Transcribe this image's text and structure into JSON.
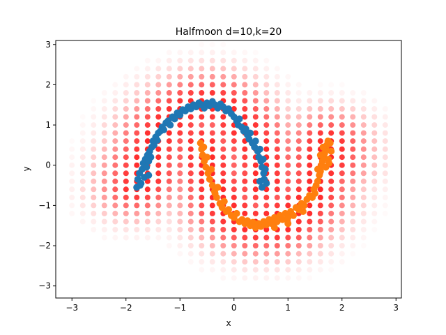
{
  "chart_data": {
    "type": "scatter",
    "title": "Halfmoon d=10,k=20",
    "xlabel": "x",
    "ylabel": "y",
    "xlim": [
      -3.3,
      3.1
    ],
    "ylim": [
      -3.3,
      3.1
    ],
    "xticks": [
      -3,
      -2,
      -1,
      0,
      1,
      2,
      3
    ],
    "yticks": [
      -3,
      -2,
      -1,
      0,
      1,
      2,
      3
    ],
    "grid": false,
    "legend": "none",
    "colors": {
      "grid_points": "#ff0000",
      "upper_moon": "#1f77b4",
      "lower_moon": "#ff7f0e"
    },
    "grid_layer": {
      "description_of_axes": "regular grid of candidate points, opacity encodes density",
      "x_range": [
        -3,
        2.8
      ],
      "y_range": [
        -3.2,
        3.0
      ],
      "step": 0.2
    },
    "series": [
      {
        "color": "#1f77b4",
        "points": [
          [
            -1.8,
            -0.55
          ],
          [
            -1.78,
            -0.35
          ],
          [
            -1.75,
            -0.2
          ],
          [
            -1.72,
            -0.45
          ],
          [
            -1.7,
            -0.1
          ],
          [
            -1.68,
            0.05
          ],
          [
            -1.66,
            -0.3
          ],
          [
            -1.64,
            0.15
          ],
          [
            -1.62,
            -0.05
          ],
          [
            -1.6,
            0.25
          ],
          [
            -1.58,
            0.1
          ],
          [
            -1.56,
            0.35
          ],
          [
            -1.54,
            0.2
          ],
          [
            -1.52,
            0.45
          ],
          [
            -1.5,
            0.6
          ],
          [
            -1.48,
            0.5
          ],
          [
            -1.45,
            0.7
          ],
          [
            -1.42,
            0.62
          ],
          [
            -1.4,
            0.8
          ],
          [
            -1.36,
            0.85
          ],
          [
            -1.33,
            0.95
          ],
          [
            -1.3,
            0.88
          ],
          [
            -1.26,
            1.05
          ],
          [
            -1.22,
            1.1
          ],
          [
            -1.18,
            1.0
          ],
          [
            -1.14,
            1.2
          ],
          [
            -1.1,
            1.15
          ],
          [
            -1.05,
            1.3
          ],
          [
            -1.0,
            1.25
          ],
          [
            -0.95,
            1.38
          ],
          [
            -0.9,
            1.35
          ],
          [
            -0.85,
            1.45
          ],
          [
            -0.8,
            1.4
          ],
          [
            -0.75,
            1.5
          ],
          [
            -0.7,
            1.45
          ],
          [
            -0.65,
            1.55
          ],
          [
            -0.6,
            1.5
          ],
          [
            -0.55,
            1.42
          ],
          [
            -0.5,
            1.55
          ],
          [
            -0.45,
            1.48
          ],
          [
            -0.4,
            1.58
          ],
          [
            -0.35,
            1.5
          ],
          [
            -0.3,
            1.42
          ],
          [
            -0.25,
            1.52
          ],
          [
            -0.2,
            1.45
          ],
          [
            -0.15,
            1.35
          ],
          [
            -0.1,
            1.4
          ],
          [
            -0.05,
            1.28
          ],
          [
            0.0,
            1.2
          ],
          [
            0.05,
            1.1
          ],
          [
            0.08,
            1.0
          ],
          [
            0.1,
            1.15
          ],
          [
            0.14,
            0.95
          ],
          [
            0.18,
            0.85
          ],
          [
            0.22,
            0.9
          ],
          [
            0.25,
            0.75
          ],
          [
            0.28,
            0.65
          ],
          [
            0.3,
            0.8
          ],
          [
            0.34,
            0.55
          ],
          [
            0.38,
            0.45
          ],
          [
            0.4,
            0.6
          ],
          [
            0.44,
            0.35
          ],
          [
            0.46,
            0.2
          ],
          [
            0.48,
            0.4
          ],
          [
            0.5,
            0.1
          ],
          [
            0.52,
            -0.05
          ],
          [
            0.54,
            0.15
          ],
          [
            0.55,
            -0.2
          ],
          [
            0.56,
            -0.35
          ],
          [
            0.58,
            -0.1
          ],
          [
            0.6,
            -0.45
          ],
          [
            0.52,
            -0.55
          ],
          [
            0.48,
            -0.4
          ],
          [
            -1.74,
            -0.5
          ],
          [
            -1.58,
            -0.25
          ]
        ]
      },
      {
        "color": "#ff7f0e",
        "points": [
          [
            -0.62,
            0.55
          ],
          [
            -0.6,
            0.4
          ],
          [
            -0.58,
            0.25
          ],
          [
            -0.55,
            0.1
          ],
          [
            -0.52,
            -0.05
          ],
          [
            -0.5,
            0.2
          ],
          [
            -0.48,
            -0.2
          ],
          [
            -0.45,
            -0.35
          ],
          [
            -0.42,
            -0.1
          ],
          [
            -0.4,
            -0.5
          ],
          [
            -0.36,
            -0.65
          ],
          [
            -0.32,
            -0.8
          ],
          [
            -0.3,
            -0.55
          ],
          [
            -0.26,
            -0.95
          ],
          [
            -0.22,
            -1.05
          ],
          [
            -0.18,
            -0.9
          ],
          [
            -0.14,
            -1.15
          ],
          [
            -0.1,
            -1.1
          ],
          [
            -0.05,
            -1.25
          ],
          [
            0.0,
            -1.3
          ],
          [
            0.05,
            -1.2
          ],
          [
            0.1,
            -1.4
          ],
          [
            0.15,
            -1.35
          ],
          [
            0.2,
            -1.45
          ],
          [
            0.25,
            -1.38
          ],
          [
            0.3,
            -1.5
          ],
          [
            0.35,
            -1.42
          ],
          [
            0.4,
            -1.55
          ],
          [
            0.45,
            -1.45
          ],
          [
            0.5,
            -1.52
          ],
          [
            0.55,
            -1.4
          ],
          [
            0.6,
            -1.48
          ],
          [
            0.65,
            -1.35
          ],
          [
            0.7,
            -1.45
          ],
          [
            0.75,
            -1.3
          ],
          [
            0.8,
            -1.4
          ],
          [
            0.85,
            -1.25
          ],
          [
            0.9,
            -1.35
          ],
          [
            0.95,
            -1.2
          ],
          [
            1.0,
            -1.3
          ],
          [
            1.05,
            -1.15
          ],
          [
            1.1,
            -1.25
          ],
          [
            1.15,
            -1.05
          ],
          [
            1.2,
            -1.1
          ],
          [
            1.25,
            -0.95
          ],
          [
            1.3,
            -1.0
          ],
          [
            1.35,
            -0.85
          ],
          [
            1.4,
            -0.75
          ],
          [
            1.45,
            -0.8
          ],
          [
            1.48,
            -0.6
          ],
          [
            1.52,
            -0.5
          ],
          [
            1.55,
            -0.4
          ],
          [
            1.58,
            -0.25
          ],
          [
            1.6,
            -0.15
          ],
          [
            1.62,
            0.0
          ],
          [
            1.64,
            0.1
          ],
          [
            1.66,
            0.2
          ],
          [
            1.68,
            0.3
          ],
          [
            1.7,
            0.4
          ],
          [
            1.72,
            0.5
          ],
          [
            1.74,
            0.6
          ],
          [
            1.65,
            0.45
          ],
          [
            1.6,
            0.25
          ],
          [
            1.55,
            -0.1
          ],
          [
            1.78,
            0.55
          ],
          [
            1.8,
            0.35
          ],
          [
            1.75,
            0.15
          ],
          [
            1.7,
            -0.05
          ],
          [
            -0.56,
            0.45
          ],
          [
            -0.35,
            -0.7
          ],
          [
            0.75,
            -1.55
          ],
          [
            1.0,
            -1.45
          ],
          [
            1.28,
            -1.15
          ],
          [
            1.5,
            -0.7
          ],
          [
            1.76,
            0.05
          ]
        ]
      }
    ]
  }
}
